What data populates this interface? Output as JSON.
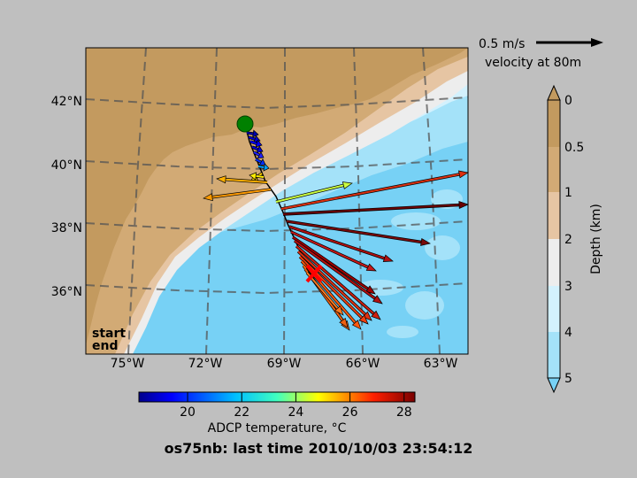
{
  "map": {
    "lat_ticks": [
      "42°N",
      "40°N",
      "38°N",
      "36°N"
    ],
    "lon_ticks": [
      "75°W",
      "72°W",
      "69°W",
      "66°W",
      "63°W"
    ],
    "lon_range": [
      -76.6,
      -61.9
    ],
    "lat_range": [
      34.0,
      43.7
    ],
    "start_label": "start",
    "end_label": "end",
    "start_color": "#008000",
    "end_color": "#ff0000",
    "start_point": {
      "lon": -70.6,
      "lat": 41.25
    },
    "end_point": {
      "lon": -67.9,
      "lat": 36.5
    }
  },
  "velocity_key": {
    "speed_label": "0.5 m/s",
    "depth_label": "velocity at 80m"
  },
  "depth_colorbar": {
    "label": "Depth (km)",
    "ticks": [
      "0",
      "0.5",
      "1",
      "2",
      "3",
      "4",
      "5"
    ],
    "colors": [
      "#c39a5f",
      "#d2aa75",
      "#e6c5a3",
      "#ededed",
      "#d3f1fd",
      "#a4e2f9",
      "#77d1f5"
    ]
  },
  "temp_colorbar": {
    "label": "ADCP temperature, °C",
    "ticks": [
      "20",
      "22",
      "24",
      "26",
      "28"
    ],
    "range": [
      18.2,
      28.4
    ]
  },
  "title": "os75nb: last time 2010/10/03 23:54:12"
}
